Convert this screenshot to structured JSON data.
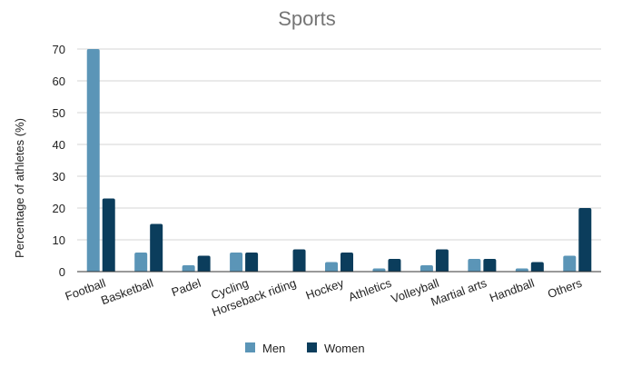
{
  "chart_data": {
    "type": "bar",
    "title": "Sports",
    "xlabel": "",
    "ylabel": "Percentage of athletes (%)",
    "ylim": [
      0,
      70
    ],
    "yticks": [
      0,
      10,
      20,
      30,
      40,
      50,
      60,
      70
    ],
    "grid": true,
    "legend": "bottom",
    "categories": [
      "Football",
      "Basketball",
      "Padel",
      "Cycling",
      "Horseback riding",
      "Hockey",
      "Athletics",
      "Volleyball",
      "Martial arts",
      "Handball",
      "Others"
    ],
    "series": [
      {
        "name": "Men",
        "color": "#5b95b7",
        "values": [
          70,
          6,
          2,
          6,
          0,
          3,
          1,
          2,
          4,
          1,
          5
        ]
      },
      {
        "name": "Women",
        "color": "#0b3d5c",
        "values": [
          23,
          15,
          5,
          6,
          7,
          6,
          4,
          7,
          4,
          3,
          20
        ]
      }
    ]
  }
}
